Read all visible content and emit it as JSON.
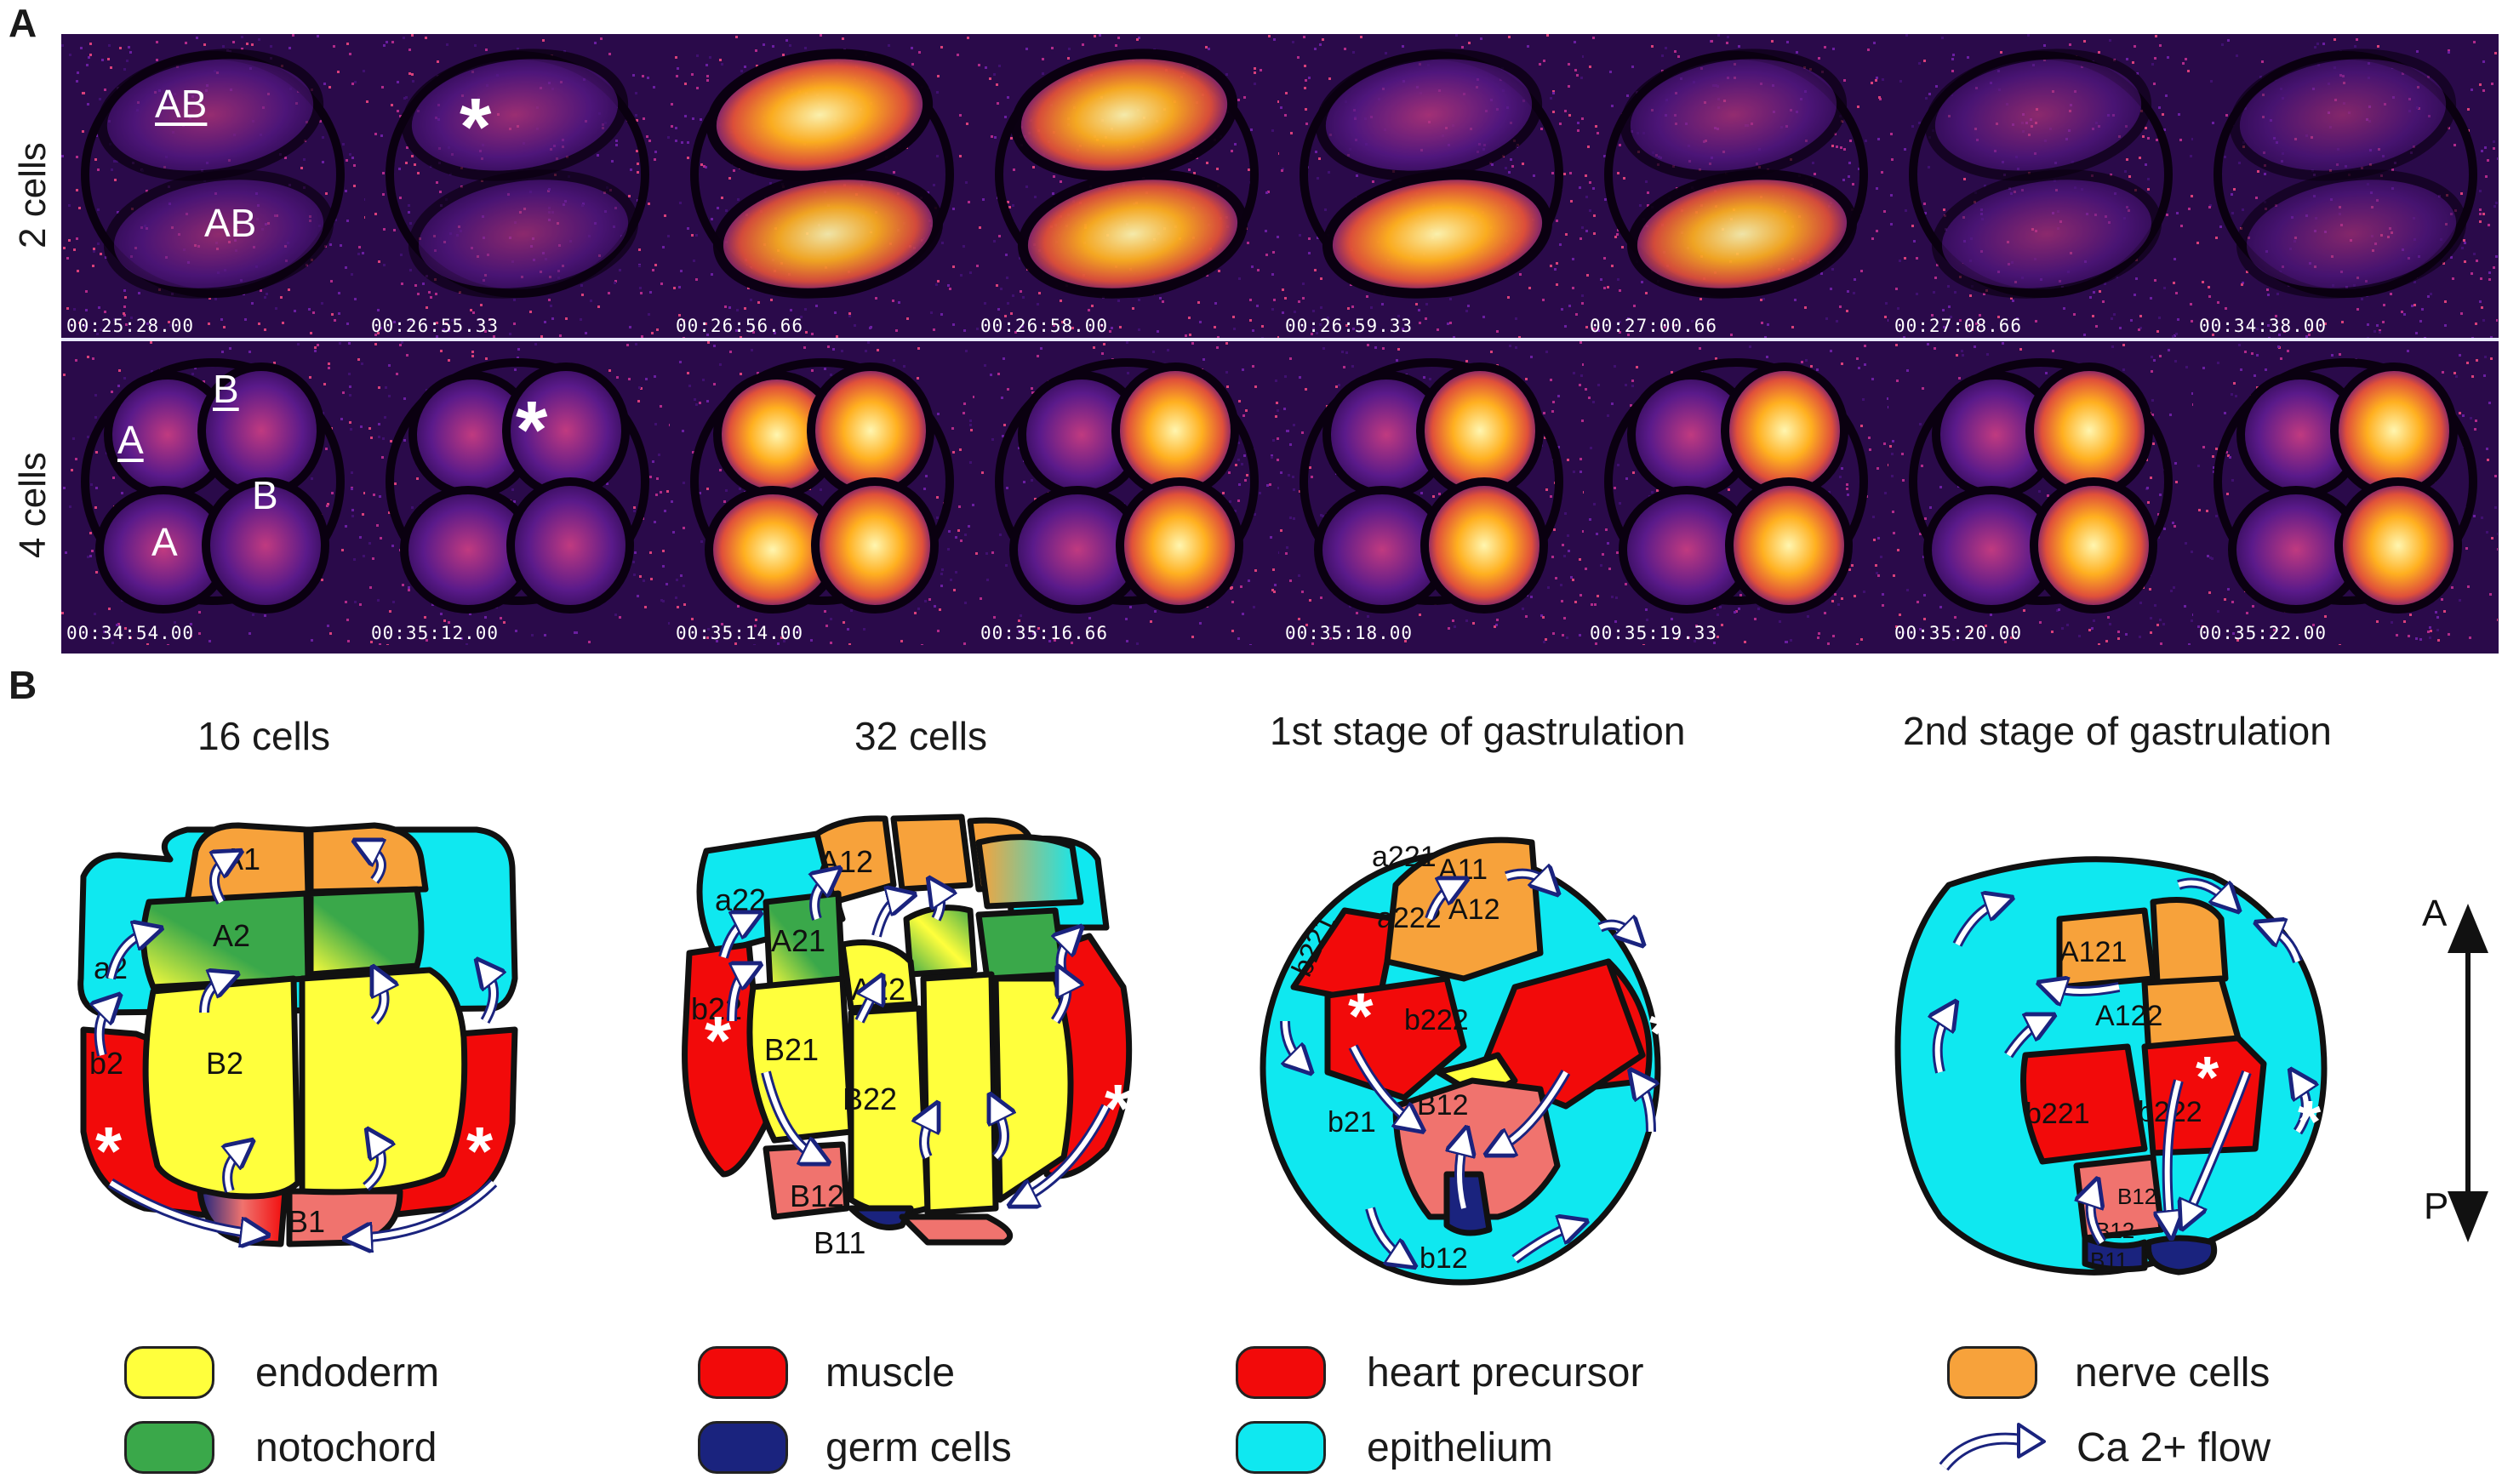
{
  "panels": {
    "a_letter": "A",
    "b_letter": "B"
  },
  "row_labels": [
    "2 cells",
    "4 cells"
  ],
  "timestamps_row1": [
    "00:25:28.00",
    "00:26:55.33",
    "00:26:56.66",
    "00:26:58.00",
    "00:26:59.33",
    "00:27:00.66",
    "00:27:08.66",
    "00:34:38.00"
  ],
  "timestamps_row2": [
    "00:34:54.00",
    "00:35:12.00",
    "00:35:14.00",
    "00:35:16.66",
    "00:35:18.00",
    "00:35:19.33",
    "00:35:20.00",
    "00:35:22.00"
  ],
  "cell_labels_2": {
    "top": "AB",
    "bottom": "AB"
  },
  "cell_labels_4": {
    "a_under": "A",
    "b_under": "B",
    "a": "A",
    "b": "B"
  },
  "stage_titles": [
    "16 cells",
    "32 cells",
    "1st stage of gastrulation",
    "2nd stage of gastrulation"
  ],
  "embryo16": {
    "A1": "A1",
    "A2": "A2",
    "a2": "a2",
    "b2": "b2",
    "B2": "B2",
    "B1": "B1"
  },
  "embryo32": {
    "A12": "A12",
    "a22": "a22",
    "A21": "A21",
    "A22": "A22",
    "b22": "b22",
    "B21": "B21",
    "B22": "B22",
    "B12": "B12",
    "B11": "B11"
  },
  "gast1": {
    "a221": "a221",
    "A11": "A11",
    "a222": "a222",
    "A12": "A12",
    "b221": "b221",
    "b222": "b222",
    "B12": "B12",
    "b21": "b21",
    "b12": "b12"
  },
  "gast2": {
    "A121": "A121",
    "A122": "A122",
    "b221": "b221",
    "b222": "b222",
    "B12a": "B12",
    "B12b": "B12",
    "B11": "B11"
  },
  "axis": {
    "top": "A",
    "bottom": "P"
  },
  "legend": [
    {
      "label": "endoderm",
      "color": "#ffff3c"
    },
    {
      "label": "notochord",
      "color": "#3aa84a"
    },
    {
      "label": "muscle",
      "color": "#f20a0a"
    },
    {
      "label": "germ cells",
      "color": "#1a237e"
    },
    {
      "label": "heart precursor",
      "color": "#f20a0a"
    },
    {
      "label": "epithelium",
      "color": "#0fe8f0"
    },
    {
      "label": "nerve cells",
      "color": "#f7a23b"
    },
    {
      "label": "Ca 2+ flow",
      "color": "#ffffff"
    }
  ],
  "colors": {
    "endoderm": "#ffff3c",
    "notochord": "#3aa84a",
    "muscle": "#f20a0a",
    "germ": "#1a237e",
    "epithelium": "#0fe8f0",
    "nerve": "#f7a23b",
    "salmon": "#f0736e",
    "microscopy_bg": "#2a0a4a"
  }
}
